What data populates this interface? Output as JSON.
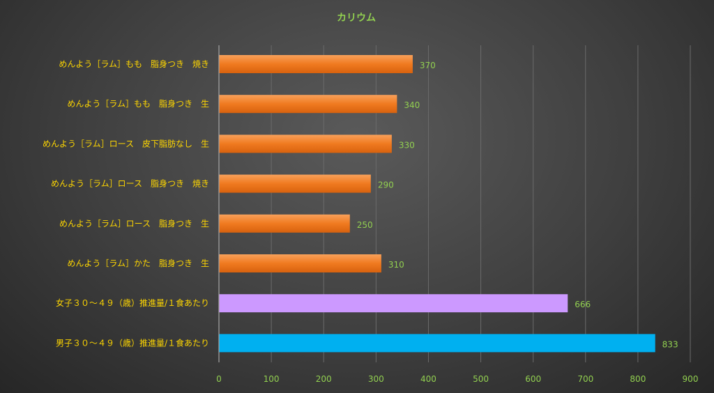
{
  "chart_data": {
    "type": "bar",
    "orientation": "horizontal",
    "title": "カリウム",
    "categories": [
      "めんよう［ラム］もも　脂身つき　焼き",
      "めんよう［ラム］もも　脂身つき　生",
      "めんよう［ラム］ロース　皮下脂肪なし　生",
      "めんよう［ラム］ロース　脂身つき　焼き",
      "めんよう［ラム］ロース　脂身つき　生",
      "めんよう［ラム］かた　脂身つき　生",
      "女子３０～４９（歳）推進量/１食あたり",
      "男子３０～４９（歳）推進量/１食あたり"
    ],
    "values": [
      370,
      340,
      330,
      290,
      250,
      310,
      666,
      833
    ],
    "bar_colors": [
      "#f07a20",
      "#f07a20",
      "#f07a20",
      "#f07a20",
      "#f07a20",
      "#f07a20",
      "#cc99ff",
      "#00b0f0"
    ],
    "xlim": [
      0,
      900
    ],
    "xticks": [
      0,
      100,
      200,
      300,
      400,
      500,
      600,
      700,
      800,
      900
    ],
    "grid": true,
    "xlabel": "",
    "ylabel": ""
  }
}
